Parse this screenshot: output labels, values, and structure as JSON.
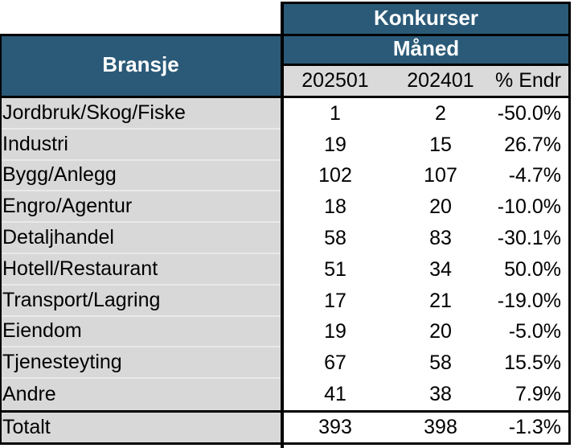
{
  "chart_data": {
    "type": "table",
    "title": "Konkurser",
    "header": {
      "corner": "Bransje",
      "group": "Konkurser",
      "subgroup": "Måned",
      "columns": [
        "202501",
        "202401",
        "% Endr"
      ]
    },
    "rows": [
      {
        "label": "Jordbruk/Skog/Fiske",
        "values": [
          "1",
          "2",
          "-50.0%"
        ]
      },
      {
        "label": "Industri",
        "values": [
          "19",
          "15",
          "26.7%"
        ]
      },
      {
        "label": "Bygg/Anlegg",
        "values": [
          "102",
          "107",
          "-4.7%"
        ]
      },
      {
        "label": "Engro/Agentur",
        "values": [
          "18",
          "20",
          "-10.0%"
        ]
      },
      {
        "label": "Detaljhandel",
        "values": [
          "58",
          "83",
          "-30.1%"
        ]
      },
      {
        "label": "Hotell/Restaurant",
        "values": [
          "51",
          "34",
          "50.0%"
        ]
      },
      {
        "label": "Transport/Lagring",
        "values": [
          "17",
          "21",
          "-19.0%"
        ]
      },
      {
        "label": "Eiendom",
        "values": [
          "19",
          "20",
          "-5.0%"
        ]
      },
      {
        "label": "Tjenesteyting",
        "values": [
          "67",
          "58",
          "15.5%"
        ]
      },
      {
        "label": "Andre",
        "values": [
          "41",
          "38",
          "7.9%"
        ]
      }
    ],
    "total": {
      "label": "Totalt",
      "values": [
        "393",
        "398",
        "-1.3%"
      ]
    },
    "layout": {
      "grid": "off",
      "header_span": "values columns grouped under Konkurser / Måned"
    }
  },
  "colors": {
    "header_blue": "#2b5a78",
    "header_text": "#ffffff",
    "label_cell_gray": "#d8d8d8",
    "column_header_gray": "#dadada",
    "border_black": "#000000"
  }
}
